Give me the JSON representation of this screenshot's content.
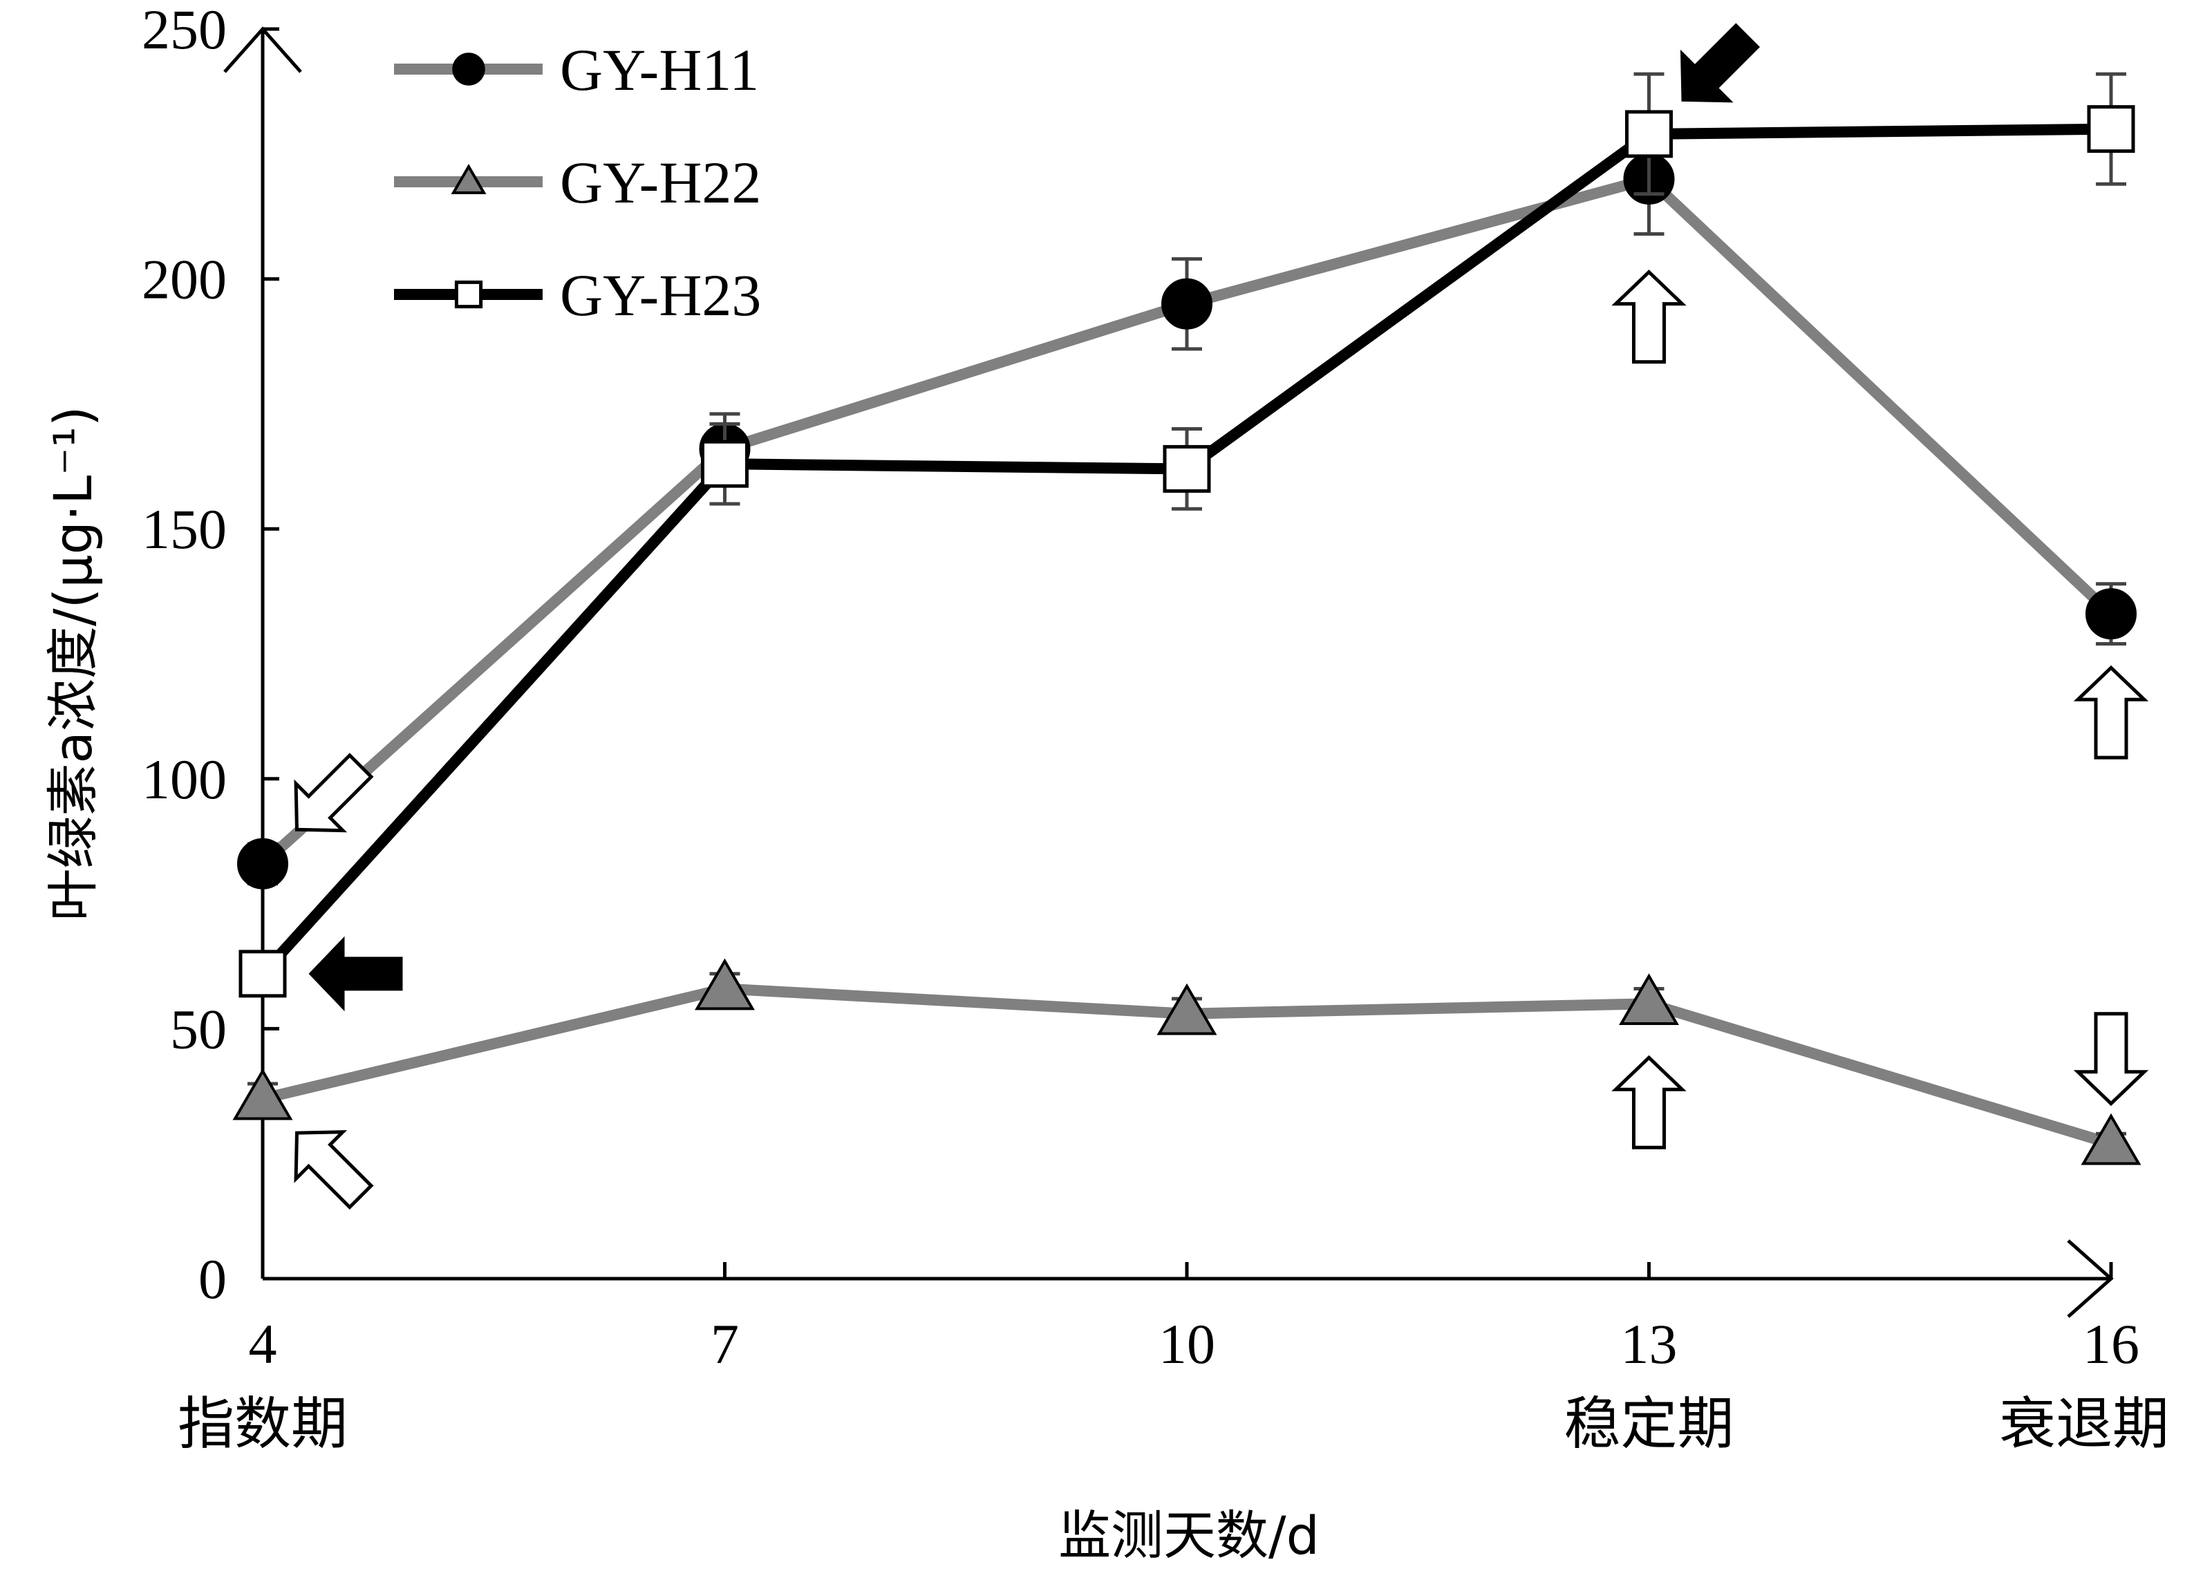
{
  "chart_data": {
    "type": "line",
    "x": [
      4,
      7,
      10,
      13,
      16
    ],
    "x_phase_labels": [
      {
        "x": 4,
        "label": "指数期"
      },
      {
        "x": 13,
        "label": "稳定期"
      },
      {
        "x": 16,
        "label": "衰退期"
      }
    ],
    "xlabel": "监测天数/d",
    "ylabel": "叶绿素a浓度/(μg·L⁻¹)",
    "ylim": [
      0,
      250
    ],
    "yticks": [
      0,
      50,
      100,
      150,
      200,
      250
    ],
    "legend_position": "top-left",
    "grid": false,
    "series": [
      {
        "name": "GY-H11",
        "marker": "circle",
        "marker_fill": "#000000",
        "line_color": "#808080",
        "values": [
          83,
          166,
          195,
          220,
          133
        ],
        "error": [
          4,
          7,
          9,
          11,
          6
        ]
      },
      {
        "name": "GY-H22",
        "marker": "triangle",
        "marker_fill": "#808080",
        "line_color": "#808080",
        "values": [
          36,
          58,
          53,
          55,
          27
        ],
        "error": [
          3,
          3,
          3,
          3,
          2
        ]
      },
      {
        "name": "GY-H23",
        "marker": "square",
        "marker_fill": "#ffffff",
        "line_color": "#000000",
        "values": [
          61,
          163,
          162,
          229,
          230
        ],
        "error": [
          3,
          8,
          8,
          12,
          11
        ]
      }
    ],
    "annotations": [
      {
        "type": "hollow-arrow",
        "series": "GY-H11",
        "x": 4,
        "direction": "down-left"
      },
      {
        "type": "filled-arrow",
        "series": "GY-H23",
        "x": 4,
        "direction": "left"
      },
      {
        "type": "hollow-arrow",
        "series": "GY-H22",
        "x": 4,
        "direction": "up-left"
      },
      {
        "type": "filled-arrow",
        "series": "GY-H23",
        "x": 13,
        "direction": "down-left"
      },
      {
        "type": "hollow-arrow",
        "series": "GY-H11",
        "x": 13,
        "direction": "up"
      },
      {
        "type": "hollow-arrow",
        "series": "GY-H22",
        "x": 13,
        "direction": "up"
      },
      {
        "type": "hollow-arrow",
        "series": "GY-H11",
        "x": 16,
        "direction": "up"
      },
      {
        "type": "hollow-arrow",
        "series": "GY-H22",
        "x": 16,
        "direction": "down"
      }
    ]
  }
}
